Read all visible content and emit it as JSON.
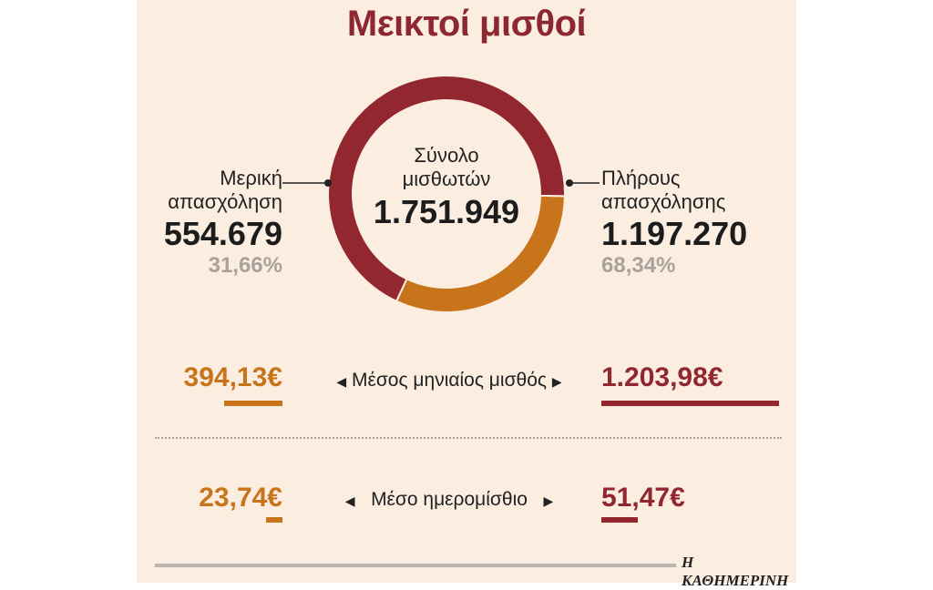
{
  "chart_data": {
    "type": "pie",
    "title": "Μεικτοί μισθοί",
    "center": {
      "label_line1": "Σύνολο",
      "label_line2": "μισθωτών",
      "total": "1.751.949"
    },
    "slices": [
      {
        "label_line1": "Μερική",
        "label_line2": "απασχόληση",
        "value": 554679,
        "value_text": "554.679",
        "percent": 31.66,
        "percent_text": "31,66%",
        "color": "#c8741a"
      },
      {
        "label_line1": "Πλήρους",
        "label_line2": "απασχόλησης",
        "value": 1197270,
        "value_text": "1.197.270",
        "percent": 68.34,
        "percent_text": "68,34%",
        "color": "#93272f"
      }
    ],
    "comparisons": [
      {
        "label": "Μέσος μηνιαίος μισθός",
        "part_time": 394.13,
        "part_time_text": "394,13€",
        "full_time": 1203.98,
        "full_time_text": "1.203,98€"
      },
      {
        "label": "Μέσο ημερομίσθιο",
        "part_time": 23.74,
        "part_time_text": "23,74€",
        "full_time": 51.47,
        "full_time_text": "51,47€"
      }
    ]
  },
  "source": "Η ΚΑΘΗΜΕΡΙΝΗ"
}
